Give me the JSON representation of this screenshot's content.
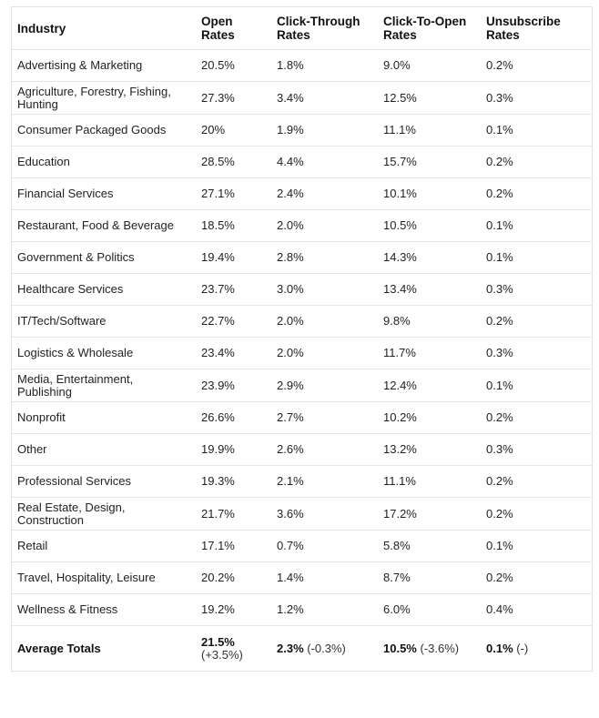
{
  "headers": [
    [
      "Industry"
    ],
    [
      "Open",
      "Rates"
    ],
    [
      "Click-Through",
      "Rates"
    ],
    [
      "Click-To-Open",
      "Rates"
    ],
    [
      "Unsubscribe",
      "Rates"
    ]
  ],
  "rows": [
    {
      "industry": [
        "Advertising & Marketing"
      ],
      "open": "20.5%",
      "ctr": "1.8%",
      "cto": "9.0%",
      "unsub": "0.2%"
    },
    {
      "industry": [
        "Agriculture, Forestry, Fishing,",
        "Hunting"
      ],
      "open": "27.3%",
      "ctr": "3.4%",
      "cto": "12.5%",
      "unsub": "0.3%"
    },
    {
      "industry": [
        "Consumer Packaged Goods"
      ],
      "open": "20%",
      "ctr": "1.9%",
      "cto": "11.1%",
      "unsub": "0.1%"
    },
    {
      "industry": [
        "Education"
      ],
      "open": "28.5%",
      "ctr": "4.4%",
      "cto": "15.7%",
      "unsub": "0.2%"
    },
    {
      "industry": [
        "Financial Services"
      ],
      "open": "27.1%",
      "ctr": "2.4%",
      "cto": "10.1%",
      "unsub": "0.2%"
    },
    {
      "industry": [
        "Restaurant, Food & Beverage"
      ],
      "open": "18.5%",
      "ctr": "2.0%",
      "cto": "10.5%",
      "unsub": "0.1%"
    },
    {
      "industry": [
        "Government & Politics"
      ],
      "open": "19.4%",
      "ctr": "2.8%",
      "cto": "14.3%",
      "unsub": "0.1%"
    },
    {
      "industry": [
        "Healthcare Services"
      ],
      "open": "23.7%",
      "ctr": "3.0%",
      "cto": "13.4%",
      "unsub": "0.3%"
    },
    {
      "industry": [
        "IT/Tech/Software"
      ],
      "open": "22.7%",
      "ctr": "2.0%",
      "cto": "9.8%",
      "unsub": "0.2%"
    },
    {
      "industry": [
        "Logistics & Wholesale"
      ],
      "open": "23.4%",
      "ctr": "2.0%",
      "cto": "11.7%",
      "unsub": "0.3%"
    },
    {
      "industry": [
        "Media, Entertainment,",
        "Publishing"
      ],
      "open": "23.9%",
      "ctr": "2.9%",
      "cto": "12.4%",
      "unsub": "0.1%"
    },
    {
      "industry": [
        "Nonprofit"
      ],
      "open": "26.6%",
      "ctr": "2.7%",
      "cto": "10.2%",
      "unsub": "0.2%"
    },
    {
      "industry": [
        "Other"
      ],
      "open": "19.9%",
      "ctr": "2.6%",
      "cto": "13.2%",
      "unsub": "0.3%"
    },
    {
      "industry": [
        "Professional Services"
      ],
      "open": "19.3%",
      "ctr": "2.1%",
      "cto": "11.1%",
      "unsub": "0.2%"
    },
    {
      "industry": [
        "Real Estate, Design,",
        "Construction"
      ],
      "open": "21.7%",
      "ctr": "3.6%",
      "cto": "17.2%",
      "unsub": "0.2%"
    },
    {
      "industry": [
        "Retail"
      ],
      "open": "17.1%",
      "ctr": "0.7%",
      "cto": "5.8%",
      "unsub": "0.1%"
    },
    {
      "industry": [
        "Travel, Hospitality, Leisure"
      ],
      "open": "20.2%",
      "ctr": "1.4%",
      "cto": "8.7%",
      "unsub": "0.2%"
    },
    {
      "industry": [
        "Wellness & Fitness"
      ],
      "open": "19.2%",
      "ctr": "1.2%",
      "cto": "6.0%",
      "unsub": "0.4%"
    }
  ],
  "totals": {
    "label": "Average Totals",
    "open": {
      "value": "21.5%",
      "change": "(+3.5%)"
    },
    "ctr": {
      "value": "2.3%",
      "change": "(-0.3%)"
    },
    "cto": {
      "value": "10.5%",
      "change": "(-3.6%)"
    },
    "unsub": {
      "value": "0.1%",
      "change": "(-)"
    }
  }
}
